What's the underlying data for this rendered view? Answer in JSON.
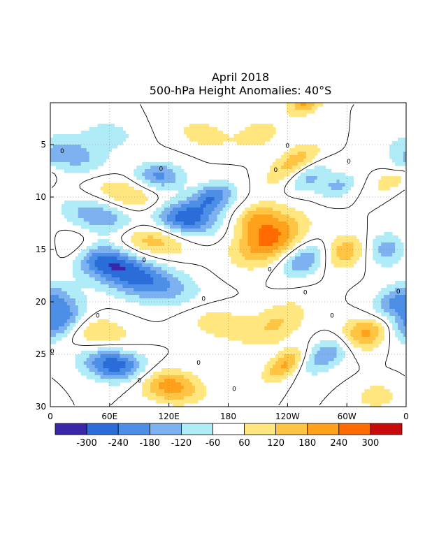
{
  "chart_data": {
    "type": "heatmap",
    "title": "April 2018",
    "subtitle": "500-hPa Height Anomalies: 40°S",
    "xlabel": "",
    "ylabel": "",
    "x_ticks": [
      "0",
      "60E",
      "120E",
      "180",
      "120W",
      "60W",
      "0"
    ],
    "x_tick_longitudes": [
      0,
      60,
      120,
      180,
      240,
      300,
      360
    ],
    "y_ticks": [
      "5",
      "10",
      "15",
      "20",
      "25",
      "30"
    ],
    "y_tick_values": [
      5,
      10,
      15,
      20,
      25,
      30
    ],
    "xlim": [
      0,
      360
    ],
    "ylim": [
      1,
      30
    ],
    "y_inverted": true,
    "grid": true,
    "contour_label": "0",
    "colorbar": {
      "labels": [
        "-300",
        "-240",
        "-180",
        "-120",
        "-60",
        "60",
        "120",
        "180",
        "240",
        "300"
      ],
      "colors": [
        "#3a26a8",
        "#2a6cd8",
        "#4d8fe6",
        "#7eb1ef",
        "#b0ecf7",
        "#ffffff",
        "#ffe67e",
        "#ffc443",
        "#ffa11b",
        "#ff6b00",
        "#c80a0a"
      ]
    },
    "features": [
      {
        "lon": 20,
        "day": 6,
        "amp": -160,
        "dir": 1,
        "len": 40,
        "wid": 1.8
      },
      {
        "lon": 55,
        "day": 12,
        "amp": -200,
        "dir": 1,
        "len": 45,
        "wid": 1.6
      },
      {
        "lon": 95,
        "day": 18,
        "amp": -230,
        "dir": 1,
        "len": 55,
        "wid": 1.8
      },
      {
        "lon": 55,
        "day": 16,
        "amp": -200,
        "dir": 1,
        "len": 40,
        "wid": 1.6
      },
      {
        "lon": 135,
        "day": 12,
        "amp": -290,
        "dir": 1,
        "len": 35,
        "wid": 1.6
      },
      {
        "lon": 110,
        "day": 8,
        "amp": -200,
        "dir": 1,
        "len": 25,
        "wid": 1.3
      },
      {
        "lon": 165,
        "day": 10,
        "amp": -220,
        "dir": 1,
        "len": 20,
        "wid": 1.5
      },
      {
        "lon": 65,
        "day": 26,
        "amp": -290,
        "dir": 1,
        "len": 35,
        "wid": 1.5
      },
      {
        "lon": 10,
        "day": 22,
        "amp": -220,
        "dir": 1,
        "len": 20,
        "wid": 2
      },
      {
        "lon": 60,
        "day": 4,
        "amp": -100,
        "dir": 1,
        "len": 25,
        "wid": 1.2
      },
      {
        "lon": 258,
        "day": 8,
        "amp": -160,
        "dir": 1,
        "len": 25,
        "wid": 1.6
      },
      {
        "lon": 258,
        "day": 16,
        "amp": -200,
        "dir": 1,
        "len": 20,
        "wid": 1.8
      },
      {
        "lon": 278,
        "day": 25,
        "amp": -180,
        "dir": 1,
        "len": 20,
        "wid": 2
      },
      {
        "lon": 340,
        "day": 15,
        "amp": -200,
        "dir": 1,
        "len": 35,
        "wid": 1.6
      },
      {
        "lon": 355,
        "day": 20,
        "amp": -220,
        "dir": 1,
        "len": 25,
        "wid": 1.8
      },
      {
        "lon": 292,
        "day": 9,
        "amp": -120,
        "dir": 1,
        "len": 15,
        "wid": 1.3
      },
      {
        "lon": 355,
        "day": 7,
        "amp": -90,
        "dir": 1,
        "len": 12,
        "wid": 1.3
      },
      {
        "lon": 80,
        "day": 10,
        "amp": 140,
        "dir": 1,
        "len": 45,
        "wid": 1.5
      },
      {
        "lon": 100,
        "day": 14,
        "amp": 190,
        "dir": 1,
        "len": 40,
        "wid": 1.6
      },
      {
        "lon": 15,
        "day": 15,
        "amp": 170,
        "dir": 1,
        "len": 25,
        "wid": 1.8
      },
      {
        "lon": 120,
        "day": 28,
        "amp": 220,
        "dir": 1,
        "len": 35,
        "wid": 1.5
      },
      {
        "lon": 50,
        "day": 23,
        "amp": 120,
        "dir": 1,
        "len": 35,
        "wid": 1.6
      },
      {
        "lon": 155,
        "day": 4,
        "amp": 100,
        "dir": 1,
        "len": 30,
        "wid": 1.2
      },
      {
        "lon": 170,
        "day": 22,
        "amp": 100,
        "dir": 1,
        "len": 40,
        "wid": 1.6
      },
      {
        "lon": 222,
        "day": 14,
        "amp": 260,
        "dir": 1,
        "len": 28,
        "wid": 2.6
      },
      {
        "lon": 208,
        "day": 12,
        "amp": 140,
        "dir": 1,
        "len": 20,
        "wid": 1.6
      },
      {
        "lon": 230,
        "day": 22,
        "amp": 120,
        "dir": 1,
        "len": 25,
        "wid": 2.5
      },
      {
        "lon": 238,
        "day": 26,
        "amp": 200,
        "dir": 1,
        "len": 15,
        "wid": 1.8
      },
      {
        "lon": 245,
        "day": 7,
        "amp": 210,
        "dir": 1,
        "len": 18,
        "wid": 2.2
      },
      {
        "lon": 258,
        "day": 1,
        "amp": 190,
        "dir": 1,
        "len": 15,
        "wid": 1.3
      },
      {
        "lon": 302,
        "day": 15,
        "amp": 210,
        "dir": 1,
        "len": 25,
        "wid": 1.8
      },
      {
        "lon": 318,
        "day": 23,
        "amp": 210,
        "dir": 1,
        "len": 25,
        "wid": 1.6
      },
      {
        "lon": 348,
        "day": 8,
        "amp": 130,
        "dir": 1,
        "len": 15,
        "wid": 1.8
      },
      {
        "lon": 210,
        "day": 4,
        "amp": 110,
        "dir": 1,
        "len": 20,
        "wid": 1.5
      },
      {
        "lon": 330,
        "day": 29,
        "amp": 110,
        "dir": 1,
        "len": 20,
        "wid": 1.2
      }
    ]
  }
}
